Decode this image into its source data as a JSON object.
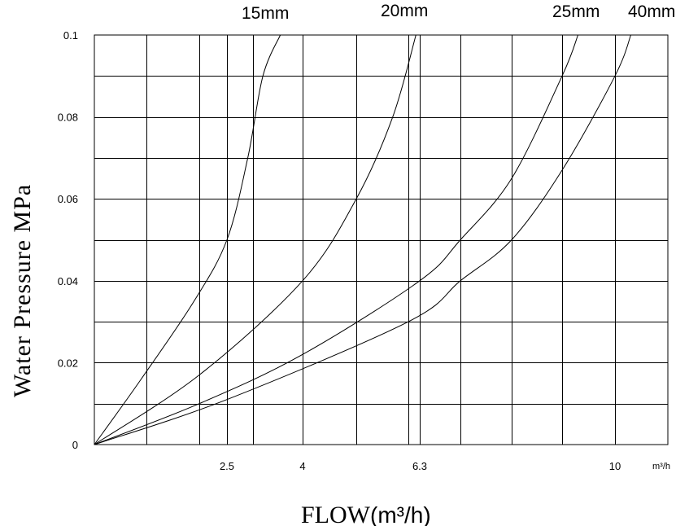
{
  "chart_data": {
    "type": "line",
    "title": "",
    "ylabel": "Water Pressure  MPa",
    "xlabel": "FLOW",
    "xlabel_unit": "(m³/h)",
    "x_unit_label": "m³/h",
    "ylim": [
      0,
      0.1
    ],
    "grid": true,
    "y_ticks": [
      {
        "value": 0,
        "label": "0"
      },
      {
        "value": 0.02,
        "label": "0.02"
      },
      {
        "value": 0.04,
        "label": "0.04"
      },
      {
        "value": 0.06,
        "label": "0.06"
      },
      {
        "value": 0.08,
        "label": "0.08"
      },
      {
        "value": 0.1,
        "label": "0.1"
      }
    ],
    "x_ticks": [
      {
        "value": 2.5,
        "label": "2.5"
      },
      {
        "value": 4,
        "label": "4"
      },
      {
        "value": 6.3,
        "label": "6.3"
      },
      {
        "value": 10,
        "label": "10"
      }
    ],
    "series": [
      {
        "name": "15mm",
        "points": [
          [
            0,
            0
          ],
          [
            0.9,
            0.016
          ],
          [
            1.9,
            0.035
          ],
          [
            2.5,
            0.05
          ],
          [
            2.9,
            0.07
          ],
          [
            3.2,
            0.09
          ],
          [
            3.55,
            0.1
          ]
        ]
      },
      {
        "name": "20mm",
        "points": [
          [
            0,
            0
          ],
          [
            2.0,
            0.017
          ],
          [
            4.0,
            0.04
          ],
          [
            5.0,
            0.06
          ],
          [
            5.7,
            0.08
          ],
          [
            6.2,
            0.1
          ]
        ]
      },
      {
        "name": "25mm",
        "points": [
          [
            0,
            0
          ],
          [
            2.0,
            0.01
          ],
          [
            4.0,
            0.022
          ],
          [
            6.3,
            0.04
          ],
          [
            7.0,
            0.05
          ],
          [
            8.0,
            0.065
          ],
          [
            9.0,
            0.09
          ],
          [
            9.3,
            0.1
          ]
        ]
      },
      {
        "name": "40mm",
        "points": [
          [
            0,
            0
          ],
          [
            2.5,
            0.011
          ],
          [
            6.0,
            0.03
          ],
          [
            7.0,
            0.04
          ],
          [
            8.0,
            0.05
          ],
          [
            9.0,
            0.067
          ],
          [
            10.0,
            0.09
          ],
          [
            10.3,
            0.1
          ]
        ]
      }
    ]
  }
}
